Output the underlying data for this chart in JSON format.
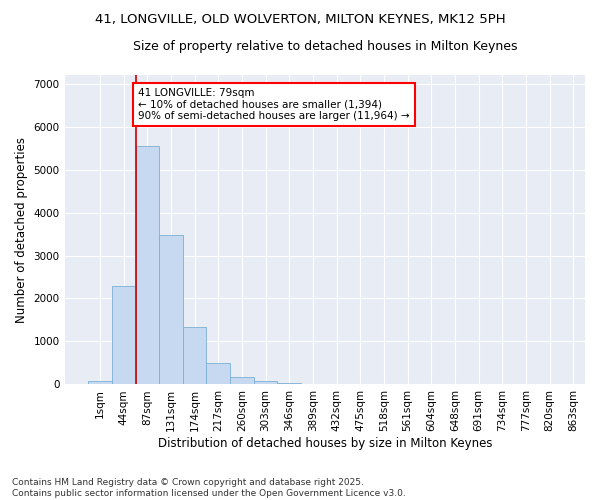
{
  "title_line1": "41, LONGVILLE, OLD WOLVERTON, MILTON KEYNES, MK12 5PH",
  "title_line2": "Size of property relative to detached houses in Milton Keynes",
  "xlabel": "Distribution of detached houses by size in Milton Keynes",
  "ylabel": "Number of detached properties",
  "bar_color": "#c6d9f0",
  "bar_edge_color": "#7bafd4",
  "background_color": "#e8edf5",
  "grid_color": "#ffffff",
  "annotation_text": "41 LONGVILLE: 79sqm\n← 10% of detached houses are smaller (1,394)\n90% of semi-detached houses are larger (11,964) →",
  "vline_color": "#cc0000",
  "bins": [
    "1sqm",
    "44sqm",
    "87sqm",
    "131sqm",
    "174sqm",
    "217sqm",
    "260sqm",
    "303sqm",
    "346sqm",
    "389sqm",
    "432sqm",
    "475sqm",
    "518sqm",
    "561sqm",
    "604sqm",
    "648sqm",
    "691sqm",
    "734sqm",
    "777sqm",
    "820sqm",
    "863sqm"
  ],
  "values": [
    80,
    2300,
    5550,
    3470,
    1330,
    490,
    175,
    90,
    45,
    10,
    5,
    0,
    0,
    0,
    0,
    0,
    0,
    0,
    0,
    0
  ],
  "ylim": [
    0,
    7200
  ],
  "yticks": [
    0,
    1000,
    2000,
    3000,
    4000,
    5000,
    6000,
    7000
  ],
  "footer": "Contains HM Land Registry data © Crown copyright and database right 2025.\nContains public sector information licensed under the Open Government Licence v3.0.",
  "title_fontsize": 9.5,
  "subtitle_fontsize": 9,
  "axis_label_fontsize": 8.5,
  "tick_fontsize": 7.5,
  "annotation_fontsize": 7.5,
  "footer_fontsize": 6.5
}
